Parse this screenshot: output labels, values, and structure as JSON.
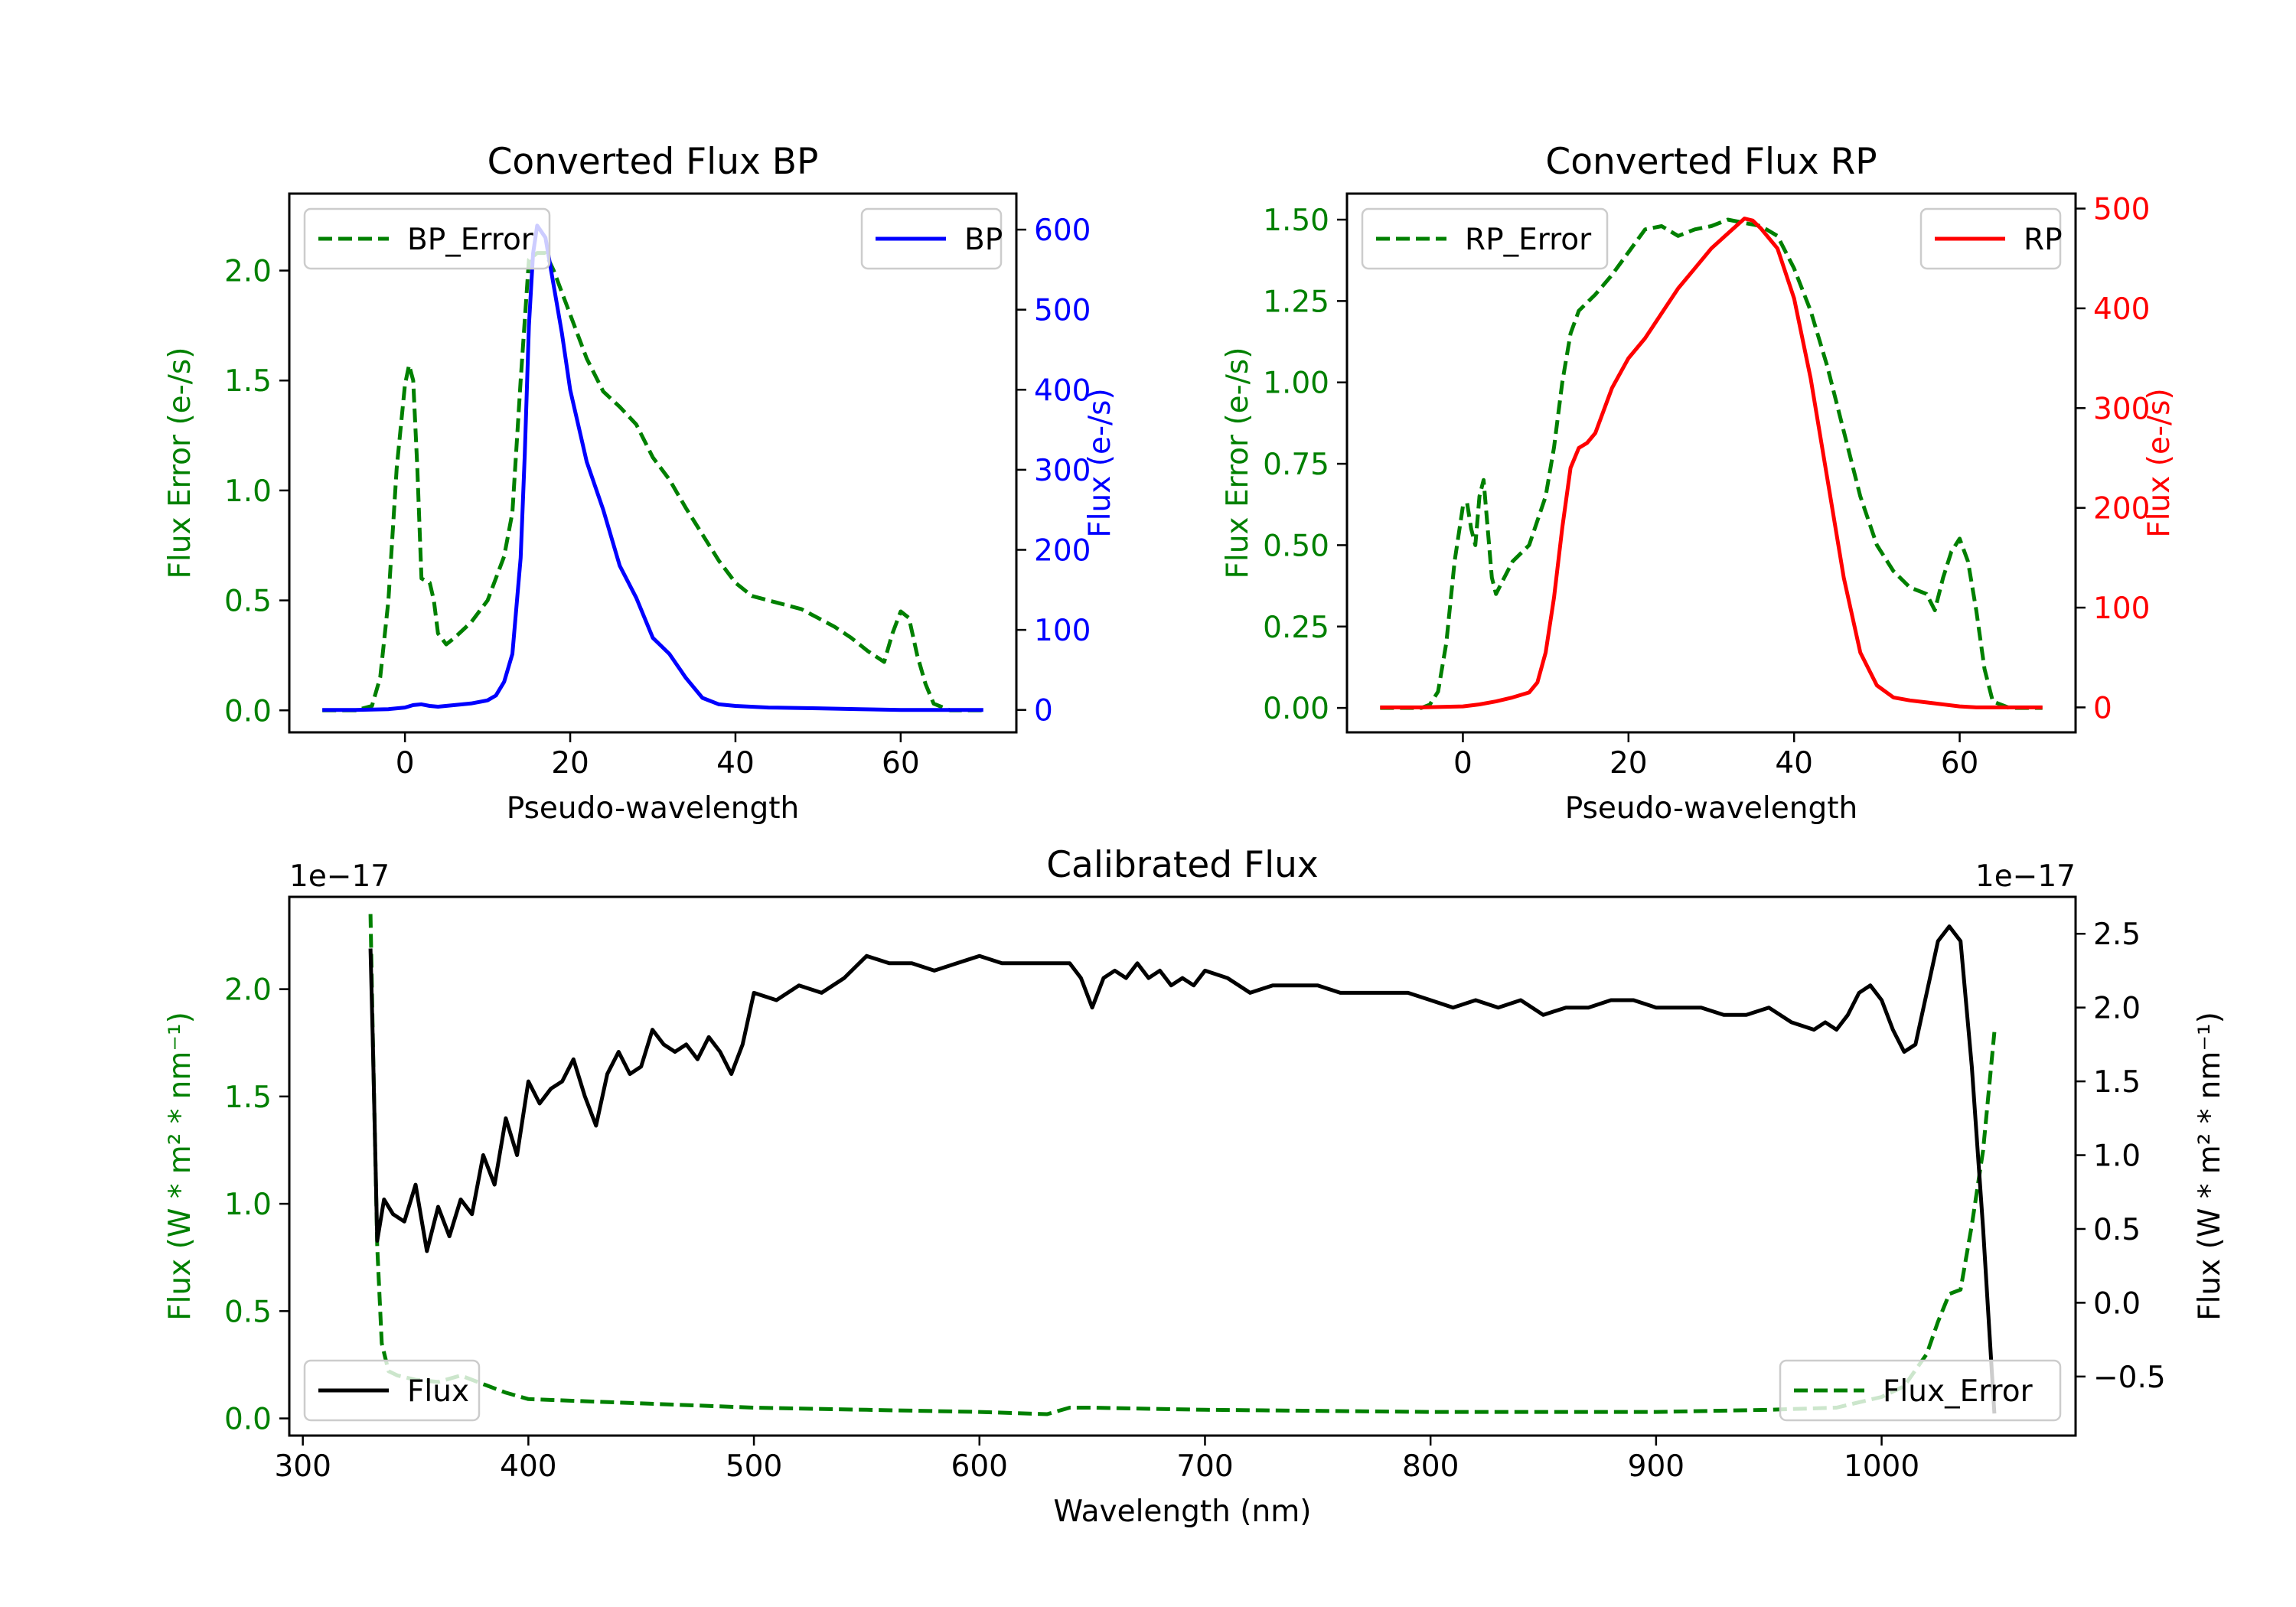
{
  "figure": {
    "background": "#ffffff"
  },
  "chart_data": [
    {
      "id": "bp",
      "type": "line",
      "title": "Converted Flux BP",
      "xlabel": "Pseudo-wavelength",
      "xlim": [
        -14,
        74
      ],
      "xticks": [
        0,
        20,
        40,
        60
      ],
      "left_axis": {
        "label": "Flux Error (e-/s)",
        "color": "#008000",
        "ylim": [
          -0.1,
          2.35
        ],
        "ticks": [
          0.0,
          0.5,
          1.0,
          1.5,
          2.0
        ],
        "tick_labels": [
          "0.0",
          "0.5",
          "1.0",
          "1.5",
          "2.0"
        ]
      },
      "right_axis": {
        "label": "Flux (e-/s)",
        "color": "#0000ff",
        "ylim": [
          -28,
          645
        ],
        "ticks": [
          0,
          100,
          200,
          300,
          400,
          500,
          600
        ],
        "tick_labels": [
          "0",
          "100",
          "200",
          "300",
          "400",
          "500",
          "600"
        ]
      },
      "series": [
        {
          "name": "BP_Error",
          "axis": "left",
          "color": "#008000",
          "dash": true,
          "x": [
            -10,
            -6,
            -4,
            -3,
            -2,
            -1,
            0,
            0.5,
            1,
            1.5,
            2,
            3,
            3.5,
            4,
            5,
            6,
            8,
            10,
            12,
            13,
            14,
            15,
            16,
            17,
            18,
            20,
            22,
            24,
            26,
            28,
            30,
            32,
            34,
            36,
            38,
            40,
            42,
            44,
            46,
            48,
            50,
            52,
            54,
            56,
            58,
            59,
            60,
            61,
            62,
            63,
            64,
            66,
            70
          ],
          "values": [
            0,
            0,
            0.02,
            0.15,
            0.5,
            1.1,
            1.48,
            1.57,
            1.5,
            1.1,
            0.6,
            0.58,
            0.5,
            0.35,
            0.3,
            0.33,
            0.4,
            0.5,
            0.7,
            0.9,
            1.5,
            2.05,
            2.08,
            2.08,
            2.0,
            1.8,
            1.6,
            1.45,
            1.38,
            1.3,
            1.15,
            1.05,
            0.92,
            0.8,
            0.68,
            0.58,
            0.52,
            0.5,
            0.48,
            0.46,
            0.42,
            0.38,
            0.33,
            0.27,
            0.22,
            0.35,
            0.45,
            0.42,
            0.25,
            0.12,
            0.03,
            0,
            0
          ]
        },
        {
          "name": "BP",
          "axis": "right",
          "color": "#0000ff",
          "dash": false,
          "x": [
            -10,
            -6,
            -2,
            0,
            1,
            2,
            3,
            4,
            6,
            8,
            10,
            11,
            12,
            13,
            14,
            14.5,
            15,
            15.5,
            16,
            17,
            18,
            19,
            20,
            22,
            24,
            26,
            28,
            30,
            31,
            32,
            34,
            36,
            38,
            40,
            44,
            50,
            55,
            60,
            65,
            70
          ],
          "values": [
            0,
            0,
            1,
            3,
            6,
            7,
            5,
            4,
            6,
            8,
            12,
            18,
            35,
            70,
            190,
            320,
            480,
            570,
            605,
            590,
            530,
            470,
            400,
            310,
            250,
            180,
            140,
            90,
            80,
            70,
            40,
            15,
            7,
            5,
            3,
            2,
            1,
            0,
            0,
            0
          ]
        }
      ],
      "legends": [
        {
          "label": "BP_Error",
          "position": "upper left"
        },
        {
          "label": "BP",
          "position": "upper right"
        }
      ]
    },
    {
      "id": "rp",
      "type": "line",
      "title": "Converted Flux RP",
      "xlabel": "Pseudo-wavelength",
      "xlim": [
        -14,
        74
      ],
      "xticks": [
        0,
        20,
        40,
        60
      ],
      "left_axis": {
        "label": "Flux Error (e-/s)",
        "color": "#008000",
        "ylim": [
          -0.075,
          1.58
        ],
        "ticks": [
          0.0,
          0.25,
          0.5,
          0.75,
          1.0,
          1.25,
          1.5
        ],
        "tick_labels": [
          "0.00",
          "0.25",
          "0.50",
          "0.75",
          "1.00",
          "1.25",
          "1.50"
        ]
      },
      "right_axis": {
        "label": "Flux (e-/s)",
        "color": "#ff0000",
        "ylim": [
          -25,
          515
        ],
        "ticks": [
          0,
          100,
          200,
          300,
          400,
          500
        ],
        "tick_labels": [
          "0",
          "100",
          "200",
          "300",
          "400",
          "500"
        ]
      },
      "series": [
        {
          "name": "RP_Error",
          "axis": "left",
          "color": "#008000",
          "dash": true,
          "x": [
            -10,
            -5,
            -4,
            -3,
            -2,
            -1,
            0,
            0.5,
            1,
            1.5,
            2,
            2.5,
            3,
            3.5,
            4,
            5,
            6,
            8,
            10,
            11,
            12,
            13,
            14,
            16,
            18,
            20,
            22,
            24,
            26,
            28,
            30,
            32,
            34,
            36,
            38,
            40,
            42,
            44,
            46,
            48,
            50,
            52,
            54,
            56,
            57,
            58,
            59,
            60,
            61,
            62,
            63,
            64,
            66,
            70
          ],
          "values": [
            0,
            0,
            0.01,
            0.05,
            0.2,
            0.45,
            0.62,
            0.63,
            0.55,
            0.5,
            0.65,
            0.7,
            0.55,
            0.4,
            0.35,
            0.4,
            0.45,
            0.5,
            0.65,
            0.8,
            1.0,
            1.15,
            1.22,
            1.27,
            1.33,
            1.4,
            1.47,
            1.48,
            1.45,
            1.47,
            1.48,
            1.5,
            1.49,
            1.48,
            1.45,
            1.35,
            1.22,
            1.05,
            0.85,
            0.65,
            0.5,
            0.42,
            0.37,
            0.35,
            0.3,
            0.4,
            0.48,
            0.52,
            0.45,
            0.3,
            0.12,
            0.02,
            0,
            0
          ]
        },
        {
          "name": "RP",
          "axis": "right",
          "color": "#ff0000",
          "dash": false,
          "x": [
            -10,
            -5,
            0,
            2,
            4,
            6,
            8,
            9,
            10,
            11,
            12,
            13,
            14,
            15,
            16,
            18,
            20,
            22,
            24,
            26,
            28,
            30,
            32,
            34,
            35,
            36,
            38,
            40,
            42,
            44,
            46,
            48,
            50,
            52,
            54,
            56,
            58,
            60,
            62,
            64,
            66,
            70
          ],
          "values": [
            0,
            0,
            1,
            3,
            6,
            10,
            15,
            25,
            55,
            110,
            180,
            240,
            260,
            265,
            275,
            320,
            350,
            370,
            395,
            420,
            440,
            460,
            475,
            490,
            488,
            480,
            460,
            410,
            330,
            230,
            130,
            55,
            22,
            10,
            7,
            5,
            3,
            1,
            0,
            0,
            0,
            0
          ]
        }
      ],
      "legends": [
        {
          "label": "RP_Error",
          "position": "upper left"
        },
        {
          "label": "RP",
          "position": "upper right"
        }
      ]
    },
    {
      "id": "cal",
      "type": "line",
      "title": "Calibrated Flux",
      "xlabel": "Wavelength (nm)",
      "xlim": [
        294,
        1086
      ],
      "xticks": [
        300,
        400,
        500,
        600,
        700,
        800,
        900,
        1000
      ],
      "left_axis": {
        "label": "Flux (W * m² * nm⁻¹)",
        "color": "#008000",
        "offset_text": "1e−17",
        "ylim": [
          -0.08,
          2.43
        ],
        "ticks": [
          0.0,
          0.5,
          1.0,
          1.5,
          2.0
        ],
        "tick_labels": [
          "0.0",
          "0.5",
          "1.0",
          "1.5",
          "2.0"
        ]
      },
      "right_axis": {
        "label": "Flux (W * m² * nm⁻¹)",
        "color": "#000000",
        "offset_text": "1e−17",
        "ylim": [
          -0.9,
          2.75
        ],
        "ticks": [
          -0.5,
          0.0,
          0.5,
          1.0,
          1.5,
          2.0,
          2.5
        ],
        "tick_labels": [
          "−0.5",
          "0.0",
          "0.5",
          "1.0",
          "1.5",
          "2.0",
          "2.5"
        ]
      },
      "series": [
        {
          "name": "Flux_Error",
          "axis": "left",
          "color": "#008000",
          "dash": true,
          "x": [
            330,
            331,
            333,
            335,
            338,
            342,
            350,
            360,
            370,
            380,
            390,
            400,
            450,
            500,
            550,
            600,
            630,
            640,
            650,
            700,
            800,
            900,
            950,
            980,
            1000,
            1010,
            1020,
            1025,
            1030,
            1035,
            1040,
            1045,
            1050
          ],
          "values": [
            2.35,
            1.8,
            0.8,
            0.35,
            0.22,
            0.2,
            0.18,
            0.17,
            0.2,
            0.16,
            0.12,
            0.09,
            0.07,
            0.05,
            0.04,
            0.03,
            0.02,
            0.05,
            0.05,
            0.04,
            0.03,
            0.03,
            0.04,
            0.05,
            0.1,
            0.15,
            0.3,
            0.45,
            0.58,
            0.6,
            0.9,
            1.25,
            1.8
          ]
        },
        {
          "name": "Flux",
          "axis": "right",
          "color": "#000000",
          "dash": false,
          "x": [
            330,
            331,
            333,
            336,
            340,
            345,
            350,
            355,
            360,
            365,
            370,
            375,
            380,
            385,
            390,
            395,
            400,
            405,
            410,
            415,
            420,
            425,
            430,
            435,
            440,
            445,
            450,
            455,
            460,
            465,
            470,
            475,
            480,
            485,
            490,
            495,
            500,
            510,
            520,
            530,
            540,
            550,
            560,
            570,
            580,
            590,
            600,
            610,
            620,
            630,
            640,
            645,
            650,
            655,
            660,
            665,
            670,
            675,
            680,
            685,
            690,
            695,
            700,
            710,
            720,
            730,
            740,
            750,
            760,
            770,
            780,
            790,
            800,
            810,
            820,
            830,
            840,
            850,
            860,
            870,
            880,
            890,
            900,
            910,
            920,
            930,
            940,
            950,
            960,
            970,
            975,
            980,
            985,
            990,
            995,
            1000,
            1005,
            1010,
            1015,
            1020,
            1025,
            1030,
            1035,
            1040,
            1045,
            1050
          ],
          "values": [
            2.4,
            1.8,
            0.42,
            0.7,
            0.6,
            0.55,
            0.8,
            0.35,
            0.65,
            0.45,
            0.7,
            0.6,
            1.0,
            0.8,
            1.25,
            1.0,
            1.5,
            1.35,
            1.45,
            1.5,
            1.65,
            1.4,
            1.2,
            1.55,
            1.7,
            1.55,
            1.6,
            1.85,
            1.75,
            1.7,
            1.75,
            1.65,
            1.8,
            1.7,
            1.55,
            1.75,
            2.1,
            2.05,
            2.15,
            2.1,
            2.2,
            2.35,
            2.3,
            2.3,
            2.25,
            2.3,
            2.35,
            2.3,
            2.3,
            2.3,
            2.3,
            2.2,
            2.0,
            2.2,
            2.25,
            2.2,
            2.3,
            2.2,
            2.25,
            2.15,
            2.2,
            2.15,
            2.25,
            2.2,
            2.1,
            2.15,
            2.15,
            2.15,
            2.1,
            2.1,
            2.1,
            2.1,
            2.05,
            2.0,
            2.05,
            2.0,
            2.05,
            1.95,
            2.0,
            2.0,
            2.05,
            2.05,
            2.0,
            2.0,
            2.0,
            1.95,
            1.95,
            2.0,
            1.9,
            1.85,
            1.9,
            1.85,
            1.95,
            2.1,
            2.15,
            2.05,
            1.85,
            1.7,
            1.75,
            2.1,
            2.45,
            2.55,
            2.45,
            1.6,
            0.5,
            -0.75
          ]
        }
      ],
      "legends": [
        {
          "label": "Flux",
          "position": "lower left"
        },
        {
          "label": "Flux_Error",
          "position": "lower right"
        }
      ]
    }
  ]
}
